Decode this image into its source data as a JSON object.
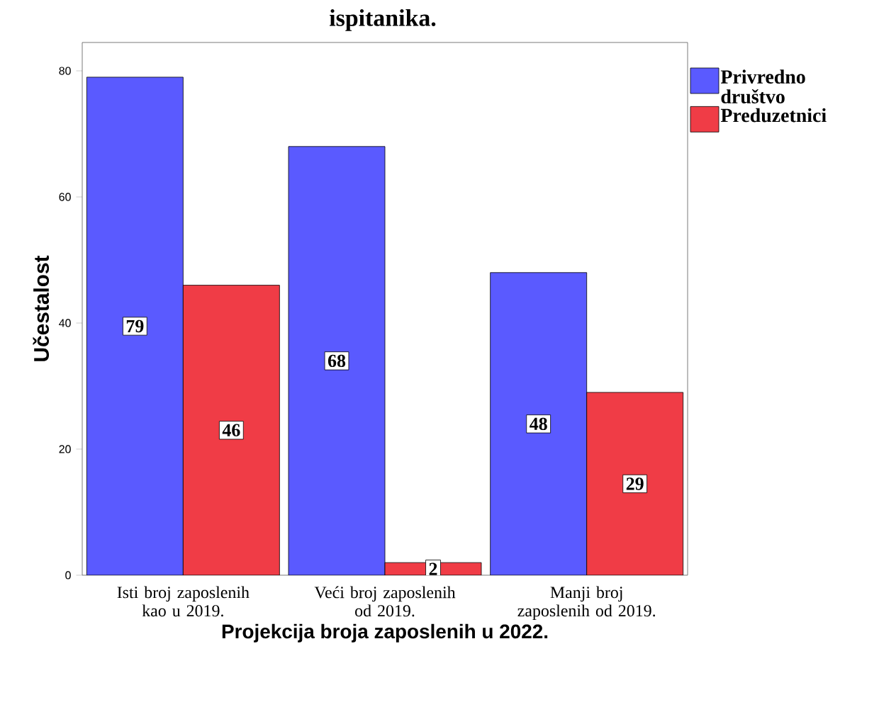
{
  "chart_data": {
    "type": "bar",
    "title": "ispitanika.",
    "xlabel": "Projekcija broja zaposlenih u 2022.",
    "ylabel": "Učestalost",
    "categories": [
      "Isti broj zaposlenih kao u 2019.",
      "Veći broj zaposlenih od 2019.",
      "Manji broj zaposlenih od 2019."
    ],
    "series": [
      {
        "name": "Privredno društvo",
        "color": "#5a5aff",
        "values": [
          79,
          68,
          48
        ]
      },
      {
        "name": "Preduzetnici",
        "color": "#f03c46",
        "values": [
          46,
          2,
          29
        ]
      }
    ],
    "ylim": [
      0,
      84.5
    ],
    "yticks": [
      0,
      20,
      40,
      60,
      80
    ],
    "data_labels": true,
    "legend": "right",
    "grid": false
  }
}
